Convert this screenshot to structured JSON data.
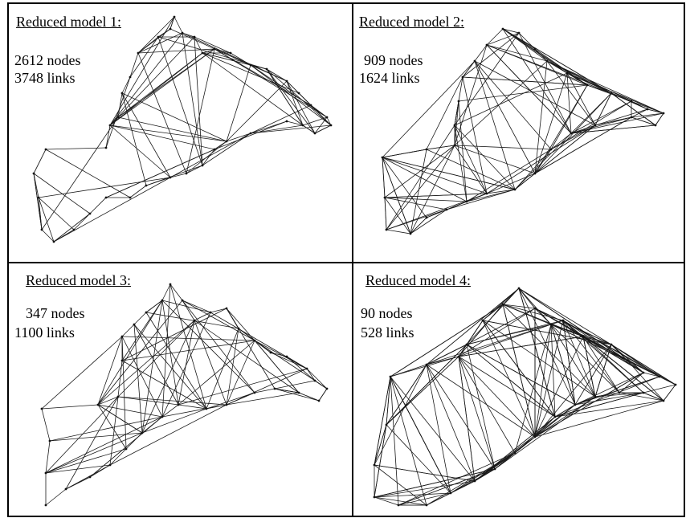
{
  "panels": [
    {
      "title": "Reduced model 1:",
      "nodes": "2612 nodes",
      "links": "3748 links",
      "seed": 11,
      "extra_edges": 140
    },
    {
      "title": "Reduced model 2:",
      "nodes": "909 nodes",
      "links": "1624 links",
      "seed": 23,
      "extra_edges": 220
    },
    {
      "title": "Reduced model 3:",
      "nodes": "347 nodes",
      "links": "1100 links",
      "seed": 37,
      "extra_edges": 170
    },
    {
      "title": "Reduced model 4:",
      "nodes": "90 nodes",
      "links": "528 links",
      "seed": 51,
      "extra_edges": 420
    }
  ]
}
